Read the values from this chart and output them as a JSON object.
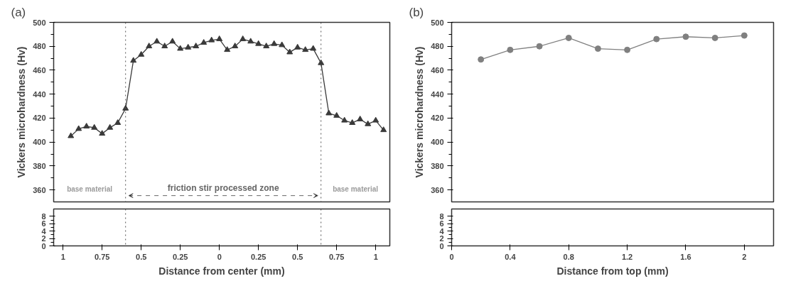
{
  "chart_data": [
    {
      "type": "line",
      "title": "(a)",
      "ylabel": "Vickers microhardness (Hv)",
      "tick_labels": "y",
      "marker": "triangle",
      "line_style": "solid",
      "grid": false,
      "xlim": [
        -1.06,
        1.09
      ],
      "ylim": [
        350,
        500
      ],
      "yticks": [
        360,
        380,
        400,
        420,
        440,
        460,
        480,
        500
      ],
      "x": [
        -0.95,
        -0.9,
        -0.85,
        -0.8,
        -0.75,
        -0.7,
        -0.65,
        -0.6,
        -0.55,
        -0.5,
        -0.45,
        -0.4,
        -0.35,
        -0.3,
        -0.25,
        -0.2,
        -0.15,
        -0.1,
        -0.05,
        0,
        0.05,
        0.1,
        0.15,
        0.2,
        0.25,
        0.3,
        0.35,
        0.4,
        0.45,
        0.5,
        0.55,
        0.6,
        0.65,
        0.7,
        0.75,
        0.8,
        0.85,
        0.9,
        0.95,
        1.0,
        1.05
      ],
      "series": [
        {
          "color": "#3a3a3a",
          "values": [
            405,
            411,
            413,
            412,
            407,
            412,
            416,
            428,
            468,
            473,
            480,
            484,
            480,
            484,
            478,
            479,
            480,
            483,
            485,
            486,
            477,
            480,
            486,
            484,
            482,
            480,
            482,
            481,
            475,
            479,
            477,
            478,
            466,
            424,
            422,
            418,
            416,
            419,
            415,
            418,
            410
          ]
        }
      ],
      "ref_lines": [
        {
          "axis": "x",
          "value": -0.6,
          "line_style": "dotted",
          "color": "#555555"
        },
        {
          "axis": "x",
          "value": 0.65,
          "line_style": "dotted",
          "color": "#555555"
        }
      ],
      "annotations": [
        "base material",
        "friction stir processed zone",
        "base material"
      ]
    },
    {
      "type": "line",
      "xlabel": "Distance from center (mm)",
      "marker": "triangle",
      "grid": false,
      "xlim": [
        -1.06,
        1.09
      ],
      "xticks": [
        {
          "value": -1,
          "label": "1"
        },
        {
          "value": -0.75,
          "label": "0.75"
        },
        {
          "value": -0.5,
          "label": "0.5"
        },
        {
          "value": -0.25,
          "label": "0.25"
        },
        0,
        0.25,
        0.5,
        0.75,
        1
      ],
      "ylim": [
        0,
        10
      ],
      "yticks": [
        0,
        2,
        4,
        6,
        8
      ],
      "ref_lines": [
        {
          "axis": "x",
          "value": -0.6,
          "line_style": "dotted",
          "color": "#555555"
        },
        {
          "axis": "x",
          "value": 0.65,
          "line_style": "dotted",
          "color": "#555555"
        }
      ]
    },
    {
      "type": "line",
      "title": "(b)",
      "ylabel": "Vickers microhardness (Hv)",
      "tick_labels": "y",
      "marker": "circle",
      "line_style": "solid",
      "grid": false,
      "xlim": [
        0,
        2.2
      ],
      "ylim": [
        350,
        500
      ],
      "yticks": [
        360,
        380,
        400,
        420,
        440,
        460,
        480,
        500
      ],
      "x": [
        0.2,
        0.4,
        0.6,
        0.8,
        1.0,
        1.2,
        1.4,
        1.6,
        1.8,
        2.0
      ],
      "series": [
        {
          "color": "#808080",
          "values": [
            469,
            477,
            480,
            487,
            478,
            477,
            486,
            488,
            487,
            489
          ]
        }
      ]
    },
    {
      "type": "line",
      "xlabel": "Distance from top (mm)",
      "marker": "circle",
      "grid": false,
      "xlim": [
        0,
        2.2
      ],
      "xticks": [
        0,
        0.4,
        0.8,
        1.2,
        1.6,
        2
      ],
      "ylim": [
        0,
        10
      ],
      "yticks": [
        0,
        2,
        4,
        6,
        8
      ]
    }
  ]
}
